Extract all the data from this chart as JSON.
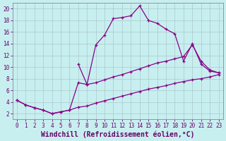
{
  "xlabel": "Windchill (Refroidissement éolien,°C)",
  "background_color": "#c8eff0",
  "grid_color": "#aac8cc",
  "line_color": "#880088",
  "xlim": [
    -0.5,
    23.5
  ],
  "ylim": [
    1.0,
    21.0
  ],
  "xticks": [
    0,
    1,
    2,
    3,
    4,
    5,
    6,
    7,
    8,
    9,
    10,
    11,
    12,
    13,
    14,
    15,
    16,
    17,
    18,
    19,
    20,
    21,
    22,
    23
  ],
  "yticks": [
    2,
    4,
    6,
    8,
    10,
    12,
    14,
    16,
    18,
    20
  ],
  "line1_x": [
    0,
    1,
    2,
    3,
    4,
    5,
    6,
    7,
    8,
    9,
    10,
    11,
    12,
    13,
    14,
    15,
    16,
    17,
    18,
    19,
    20,
    21,
    22,
    23
  ],
  "line1_y": [
    4.3,
    3.5,
    3.0,
    2.6,
    2.0,
    2.3,
    2.6,
    3.1,
    3.3,
    3.8,
    4.2,
    4.6,
    5.0,
    5.4,
    5.8,
    6.2,
    6.5,
    6.8,
    7.2,
    7.5,
    7.8,
    8.0,
    8.3,
    8.7
  ],
  "line2_x": [
    0,
    1,
    2,
    3,
    4,
    5,
    6,
    7,
    8,
    9,
    10,
    11,
    12,
    13,
    14,
    15,
    16,
    17,
    18,
    19,
    20,
    21,
    22,
    23
  ],
  "line2_y": [
    4.3,
    3.5,
    3.0,
    2.6,
    2.0,
    2.3,
    2.6,
    7.3,
    7.0,
    13.8,
    15.5,
    18.3,
    18.5,
    18.8,
    20.5,
    18.0,
    17.5,
    16.5,
    15.7,
    11.0,
    14.0,
    10.5,
    9.3,
    9.0
  ],
  "line3_x": [
    7,
    8,
    9,
    10,
    11,
    12,
    13,
    14,
    15,
    16,
    17,
    18,
    19,
    20,
    21,
    22,
    23
  ],
  "line3_y": [
    10.5,
    7.0,
    7.3,
    7.8,
    8.3,
    8.7,
    9.2,
    9.7,
    10.2,
    10.7,
    11.0,
    11.4,
    11.8,
    13.8,
    11.0,
    9.5,
    9.0
  ],
  "marker_size": 3.5,
  "line_width": 0.9,
  "font_size_ticks": 5.5,
  "font_size_xlabel": 7.0
}
